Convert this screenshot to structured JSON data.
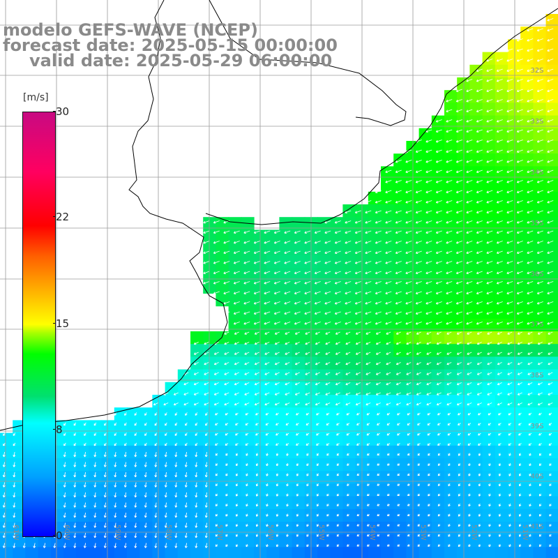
{
  "title": {
    "line1": "modelo GEFS-WAVE (NCEP)",
    "line2": "forecast date: 2025-05-15 00:00:00",
    "line3": "valid date: 2025-05-29 06:00:00"
  },
  "colorbar": {
    "unit": "[m/s]",
    "ticks": [
      "30",
      "22",
      "15",
      "8",
      "0"
    ],
    "tick_values": [
      30,
      22,
      15,
      8,
      0
    ],
    "min": 0,
    "max": 30,
    "colors": [
      "#0000ff",
      "#00a0ff",
      "#00ffff",
      "#00e070",
      "#00ff00",
      "#aaff00",
      "#ffff00",
      "#ffb000",
      "#ff6000",
      "#ff0000",
      "#ff0060",
      "#c80a82"
    ]
  },
  "grid": {
    "lat_labels": [
      "32S",
      "33S",
      "34S",
      "35S",
      "36S",
      "37S",
      "38S",
      "39S",
      "40S",
      "41S"
    ],
    "lon_labels": [
      "61W",
      "60W",
      "59W",
      "58W",
      "57W",
      "56W",
      "55W",
      "54W",
      "53W",
      "52W",
      "51W"
    ]
  },
  "field": {
    "variable": "wind speed",
    "north_range_ms": [
      12,
      16
    ],
    "central_range_ms": [
      11,
      13
    ],
    "south_range_ms": [
      4,
      8
    ],
    "arrow_color": "#ffffff",
    "land_color": "#ffffff",
    "coast_color": "#000000"
  }
}
